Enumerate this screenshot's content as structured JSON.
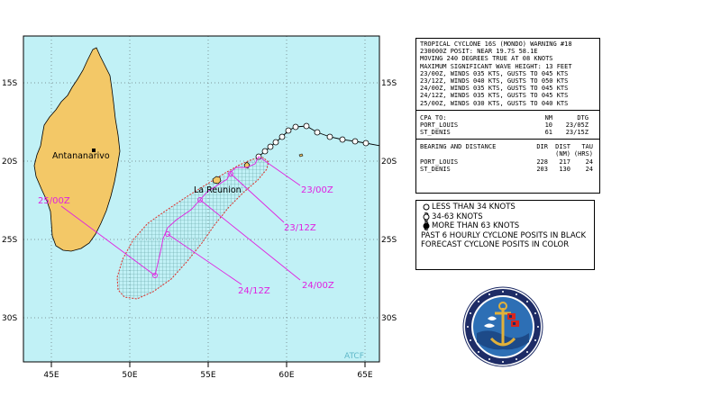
{
  "map": {
    "lat_labels": [
      "15S",
      "20S",
      "25S",
      "30S"
    ],
    "lon_labels": [
      "45E",
      "50E",
      "55E",
      "60E",
      "65E"
    ],
    "place_labels": {
      "capital": "Antananarivo",
      "island": "La Reunion"
    },
    "forecast_labels": [
      "23/00Z",
      "23/12Z",
      "24/00Z",
      "24/12Z",
      "25/00Z"
    ],
    "watermark": "ATCF",
    "colors": {
      "ocean": "#c1f1f6",
      "land": "#f3c867",
      "forecast": "#e021e0",
      "past_track": "#000000",
      "danger_area": "#e0302a",
      "grid": "#3c3c3c"
    }
  },
  "warning": {
    "header_lines": [
      "TROPICAL CYCLONE 16S (MONDO) WARNING #18",
      "230000Z POSIT: NEAR 19.7S 58.1E",
      "MOVING 240 DEGREES TRUE AT 08 KNOTS",
      "MAXIMUM SIGNIFICANT WAVE HEIGHT: 13 FEET",
      "23/00Z, WINDS 035 KTS, GUSTS TO 045 KTS",
      "23/12Z, WINDS 040 KTS, GUSTS TO 050 KTS",
      "24/00Z, WINDS 035 KTS, GUSTS TO 045 KTS",
      "24/12Z, WINDS 035 KTS, GUSTS TO 045 KTS",
      "25/00Z, WINDS 030 KTS, GUSTS TO 040 KTS"
    ],
    "cpa": {
      "title": "CPA TO:",
      "col_nm": "NM",
      "col_dtg": "DTG",
      "rows": [
        {
          "place": "PORT_LOUIS",
          "nm": "10",
          "dtg": "23/05Z"
        },
        {
          "place": "ST_DENIS",
          "nm": "61",
          "dtg": "23/15Z"
        }
      ]
    },
    "bearing": {
      "title": "BEARING AND DISTANCE",
      "col_dir": "DIR",
      "col_dist": "DIST",
      "col_tau": "TAU",
      "unit_dist": "(NM)",
      "unit_tau": "(HRS)",
      "rows": [
        {
          "place": "PORT_LOUIS",
          "dir": "228",
          "dist": "217",
          "tau": "24"
        },
        {
          "place": "ST_DENIS",
          "dir": "203",
          "dist": "130",
          "tau": "24"
        }
      ]
    }
  },
  "legend": {
    "items": [
      {
        "icon": "open-circle-icon",
        "label": "LESS THAN 34 KNOTS"
      },
      {
        "icon": "half-circle-icon",
        "label": "34-63 KNOTS"
      },
      {
        "icon": "filled-circle-icon",
        "label": "MORE THAN 63 KNOTS"
      }
    ],
    "note1": "PAST 6 HOURLY CYCLONE POSITS IN BLACK",
    "note2": "FORECAST CYCLONE POSITS IN COLOR"
  },
  "seal": {
    "icon": "navy-meteorology-seal-icon"
  }
}
